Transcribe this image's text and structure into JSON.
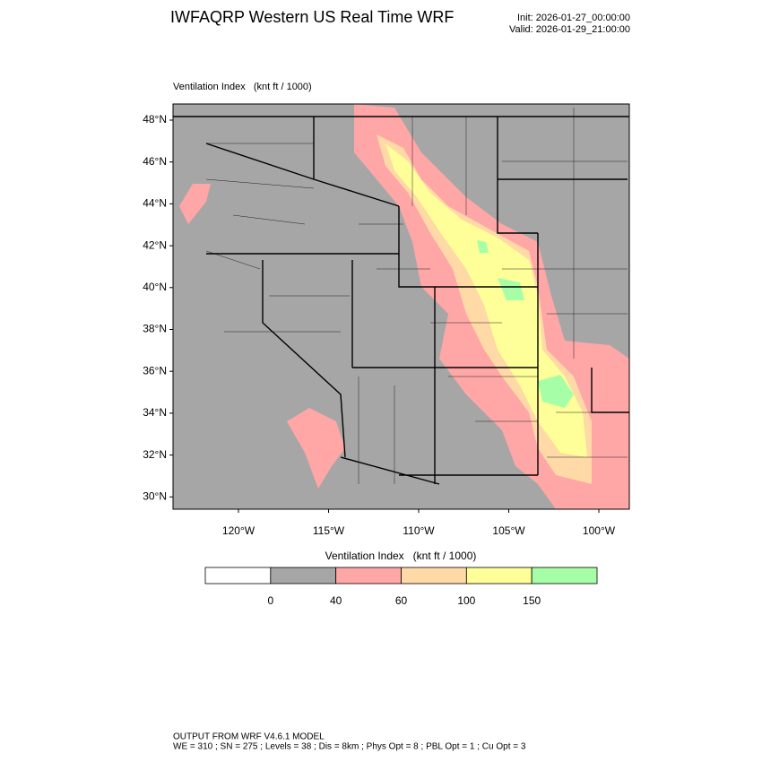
{
  "header": {
    "title": "IWFAQRP Western US Real Time WRF",
    "init": "Init: 2026-01-27_00:00:00",
    "valid": "Valid: 2026-01-29_21:00:00"
  },
  "map": {
    "label": "Ventilation Index   (knt ft / 1000)",
    "lat_labels": [
      "48°N",
      "46°N",
      "44°N",
      "42°N",
      "40°N",
      "38°N",
      "36°N",
      "34°N",
      "32°N",
      "30°N"
    ],
    "lon_labels": [
      "120°W",
      "115°W",
      "110°W",
      "105°W",
      "100°W"
    ]
  },
  "colorbar": {
    "title": "Ventilation Index   (knt ft / 1000)",
    "colors": [
      "#ffffff",
      "#a6a6a6",
      "#ffa6a6",
      "#ffd9a6",
      "#ffff99",
      "#a6ffa6"
    ],
    "labels": [
      "0",
      "40",
      "60",
      "100",
      "150"
    ]
  },
  "footer": {
    "lines": [
      "OUTPUT FROM WRF V4.6.1 MODEL",
      "WE = 310 ; SN = 275 ; Levels = 38 ; Dis = 8km ; Phys Opt = 8 ; PBL Opt = 1 ; Cu Opt = 3"
    ]
  }
}
